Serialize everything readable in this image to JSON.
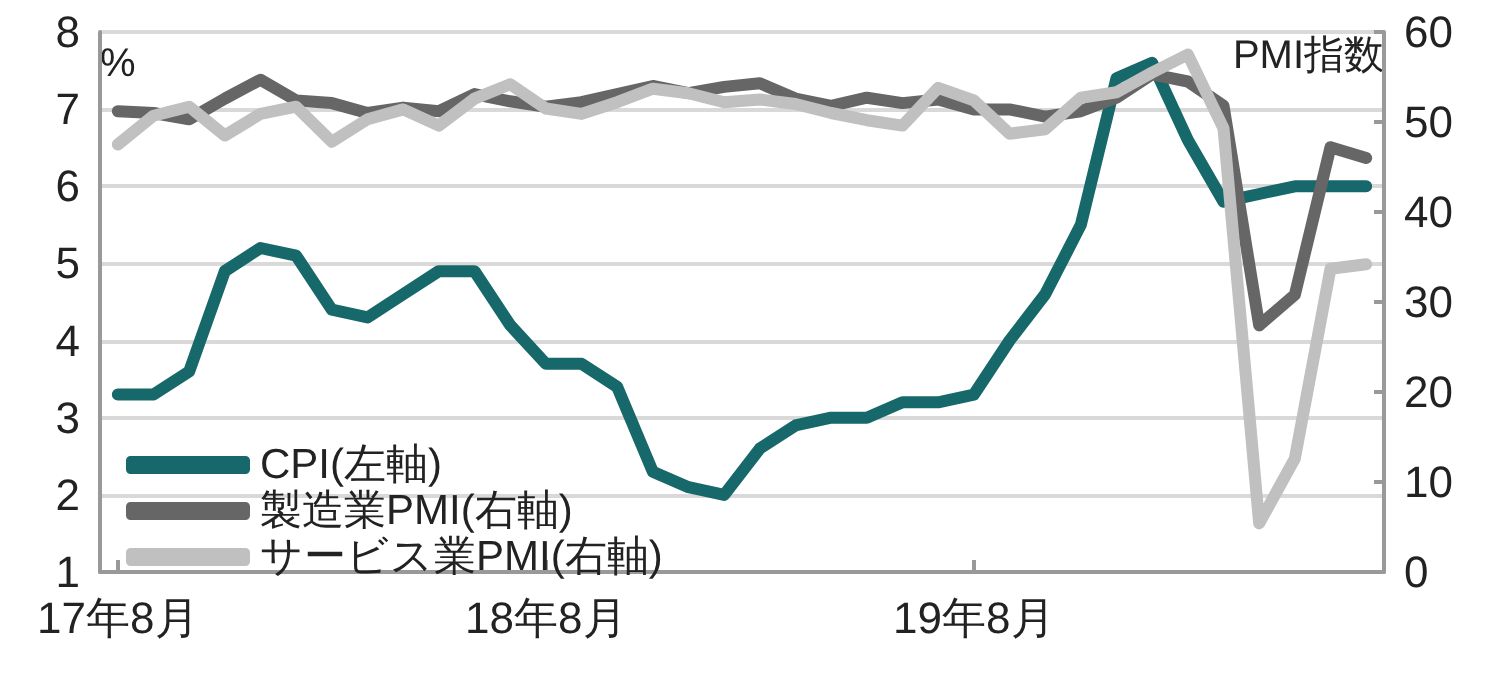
{
  "chart_data": {
    "type": "line",
    "ylabel": "%",
    "y2label": "PMI指数",
    "categories": [
      "17年8月",
      null,
      null,
      null,
      null,
      null,
      null,
      null,
      null,
      null,
      null,
      null,
      "18年8月",
      null,
      null,
      null,
      null,
      null,
      null,
      null,
      null,
      null,
      null,
      null,
      "19年8月",
      null,
      null,
      null,
      null,
      null,
      null,
      null,
      null,
      null,
      null,
      null
    ],
    "series": [
      {
        "name": "CPI(左軸)",
        "color": "#17686a",
        "values": [
          3.3,
          3.3,
          3.6,
          4.9,
          5.2,
          5.1,
          4.4,
          4.3,
          4.6,
          4.9,
          4.9,
          4.2,
          3.7,
          3.7,
          3.4,
          2.3,
          2.1,
          2.0,
          2.6,
          2.9,
          3.0,
          3.0,
          3.2,
          3.2,
          3.3,
          4.0,
          4.6,
          5.5,
          7.4,
          7.6,
          6.6,
          5.8,
          5.9,
          6.0,
          6.0,
          6.0
        ]
      },
      {
        "name": "製造業PMI(右軸)",
        "color": "#666666",
        "axis": "y2",
        "values": [
          51.2,
          51.0,
          50.3,
          52.6,
          54.7,
          52.4,
          52.1,
          51.0,
          51.6,
          51.2,
          53.1,
          52.3,
          51.7,
          52.2,
          53.1,
          54.0,
          53.2,
          53.9,
          54.3,
          52.6,
          51.8,
          52.7,
          52.1,
          52.5,
          51.4,
          51.4,
          50.6,
          51.2,
          52.7,
          55.3,
          54.5,
          51.8,
          27.4,
          30.8,
          47.2,
          46.0
        ]
      },
      {
        "name": "サービス業PMI(右軸)",
        "color": "#c0c0c0",
        "axis": "y2",
        "values": [
          47.5,
          50.7,
          51.7,
          48.5,
          50.9,
          51.7,
          47.8,
          50.3,
          51.4,
          49.6,
          52.6,
          54.2,
          51.5,
          50.9,
          52.2,
          53.7,
          53.2,
          52.2,
          52.5,
          52.0,
          51.0,
          50.2,
          49.6,
          53.8,
          52.4,
          48.7,
          49.2,
          52.7,
          53.3,
          55.5,
          57.5,
          49.3,
          5.4,
          12.6,
          33.7,
          34.2
        ]
      }
    ],
    "ylim": [
      1,
      8
    ],
    "yticks": [
      1,
      2,
      3,
      4,
      5,
      6,
      7,
      8
    ],
    "y2lim": [
      0,
      60
    ],
    "y2ticks": [
      0,
      10,
      20,
      30,
      40,
      50,
      60
    ],
    "grid": "y",
    "legend": "bottom left",
    "marker": "none",
    "line_style": "solid"
  }
}
